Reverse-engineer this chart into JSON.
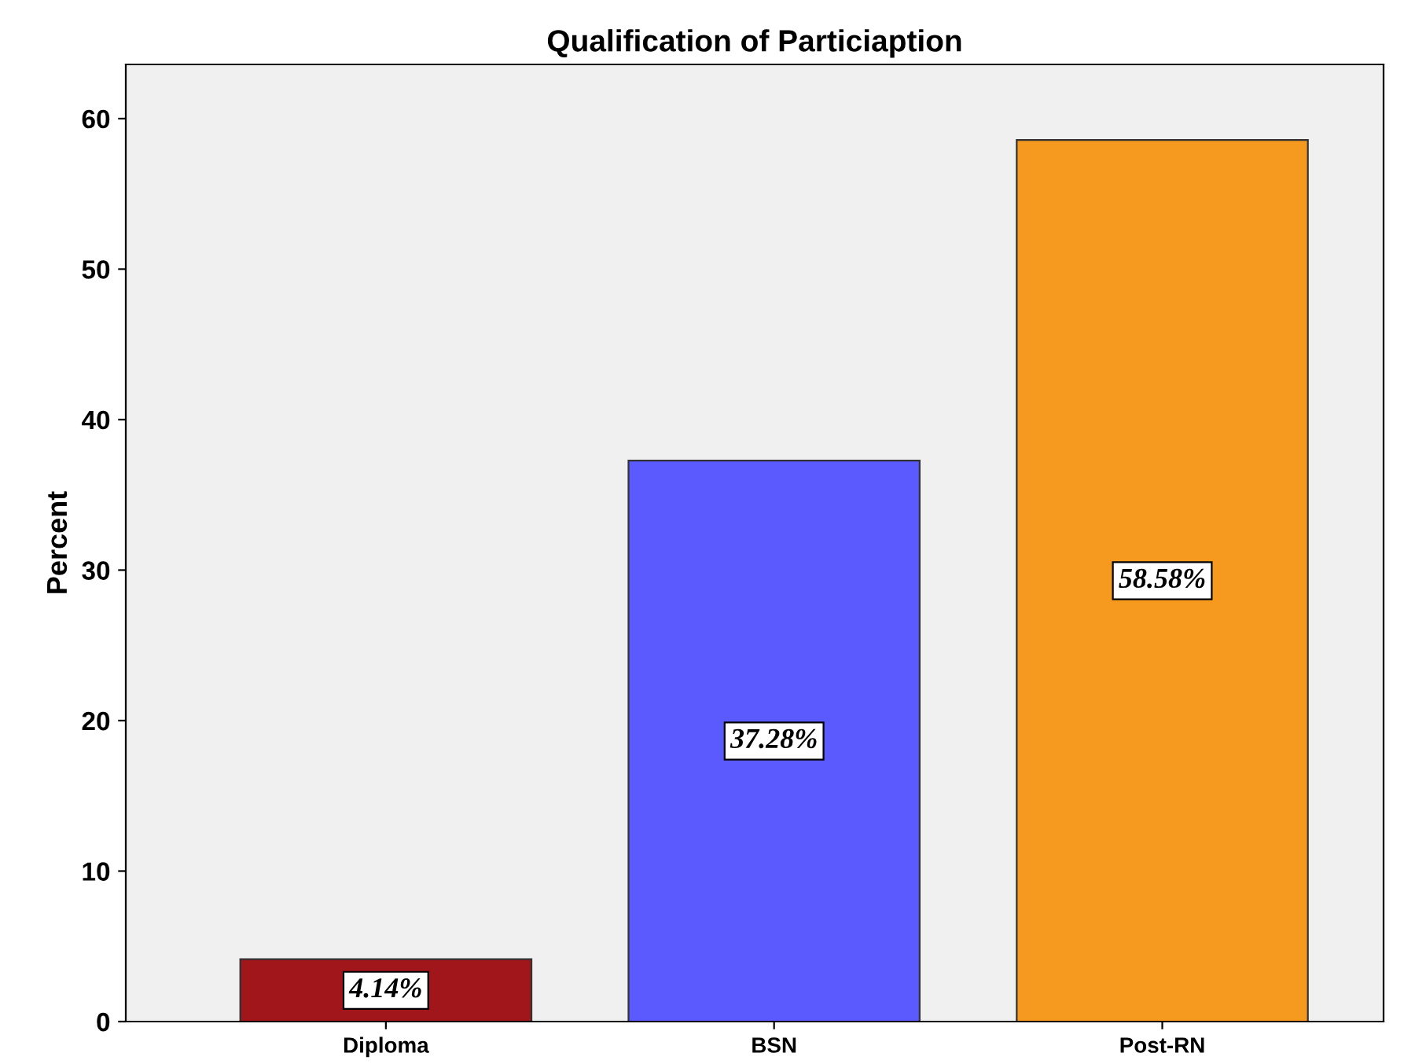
{
  "chart_data": {
    "type": "bar",
    "title": "Qualification of Particiaption",
    "ylabel": "Percent",
    "categories": [
      "Diploma",
      "BSN",
      "Post-RN"
    ],
    "values": [
      4.14,
      37.28,
      58.58
    ],
    "colors": [
      "#a0161b",
      "#5a5aff",
      "#f5991f"
    ],
    "value_labels": [
      "4.14%",
      "37.28%",
      "58.58%"
    ],
    "ylim": [
      0,
      63.6
    ],
    "yticks": [
      0,
      10,
      20,
      30,
      40,
      50,
      60
    ],
    "grid": false
  }
}
